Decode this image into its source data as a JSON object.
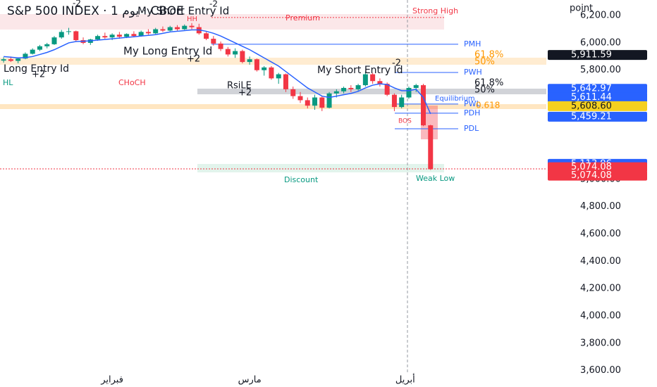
{
  "chart_data": {
    "type": "candlestick",
    "title": "S&P 500 INDEX · 1 يوم · CBOE",
    "y_axis_label": "point",
    "up_color": "#089981",
    "down_color": "#f23645",
    "grid": false,
    "xlim": [
      -0.5,
      75
    ],
    "xticks": [
      {
        "value": 15,
        "label": "فبراير"
      },
      {
        "value": 34,
        "label": "مارس"
      },
      {
        "value": 55.5,
        "label": "أبريل"
      }
    ],
    "ylim": [
      3505,
      6314
    ],
    "yticks": [
      {
        "value": 3600,
        "label": "3,600.00"
      },
      {
        "value": 3800,
        "label": "3,800.00"
      },
      {
        "value": 4000,
        "label": "4,000.00"
      },
      {
        "value": 4200,
        "label": "4,200.00"
      },
      {
        "value": 4400,
        "label": "4,400.00"
      },
      {
        "value": 4600,
        "label": "4,600.00"
      },
      {
        "value": 4800,
        "label": "4,800.00"
      },
      {
        "value": 5000,
        "label": "5,000.00"
      },
      {
        "value": 5800,
        "label": "5,800.00"
      },
      {
        "value": 6000,
        "label": "6,000.00"
      },
      {
        "value": 6200,
        "label": "6,200.00"
      }
    ],
    "x": [
      0,
      1,
      2,
      3,
      4,
      5,
      6,
      7,
      8,
      9,
      10,
      11,
      12,
      13,
      14,
      15,
      16,
      17,
      18,
      19,
      20,
      21,
      22,
      23,
      24,
      25,
      26,
      27,
      28,
      29,
      30,
      31,
      32,
      33,
      34,
      35,
      36,
      37,
      38,
      39,
      40,
      41,
      42,
      43,
      44,
      45,
      46,
      47,
      48,
      49,
      50,
      51,
      52,
      53,
      54,
      55,
      56,
      57,
      58,
      59
    ],
    "candles": [
      [
        5870,
        5895,
        5855,
        5880
      ],
      [
        5880,
        5900,
        5860,
        5868
      ],
      [
        5868,
        5890,
        5850,
        5885
      ],
      [
        5885,
        5930,
        5880,
        5920
      ],
      [
        5920,
        5960,
        5915,
        5950
      ],
      [
        5950,
        5985,
        5940,
        5975
      ],
      [
        5975,
        6000,
        5960,
        5990
      ],
      [
        5990,
        6050,
        5985,
        6040
      ],
      [
        6040,
        6095,
        6030,
        6080
      ],
      [
        6080,
        6110,
        6060,
        6085
      ],
      [
        6085,
        6090,
        6010,
        6020
      ],
      [
        6020,
        6040,
        5990,
        6000
      ],
      [
        6000,
        6030,
        5985,
        6025
      ],
      [
        6025,
        6060,
        6015,
        6050
      ],
      [
        6050,
        6075,
        6030,
        6040
      ],
      [
        6040,
        6070,
        6020,
        6060
      ],
      [
        6060,
        6080,
        6030,
        6045
      ],
      [
        6045,
        6070,
        6035,
        6065
      ],
      [
        6065,
        6085,
        6040,
        6050
      ],
      [
        6050,
        6090,
        6045,
        6080
      ],
      [
        6080,
        6100,
        6060,
        6070
      ],
      [
        6070,
        6110,
        6065,
        6100
      ],
      [
        6100,
        6120,
        6080,
        6090
      ],
      [
        6090,
        6125,
        6085,
        6115
      ],
      [
        6115,
        6130,
        6090,
        6100
      ],
      [
        6100,
        6135,
        6095,
        6125
      ],
      [
        6125,
        6145,
        6100,
        6115
      ],
      [
        6115,
        6140,
        6060,
        6070
      ],
      [
        6070,
        6080,
        6020,
        6030
      ],
      [
        6030,
        6050,
        5980,
        5995
      ],
      [
        5995,
        6010,
        5940,
        5955
      ],
      [
        5955,
        5970,
        5900,
        5915
      ],
      [
        5915,
        5960,
        5890,
        5940
      ],
      [
        5940,
        5950,
        5850,
        5860
      ],
      [
        5860,
        5900,
        5840,
        5880
      ],
      [
        5880,
        5885,
        5790,
        5800
      ],
      [
        5800,
        5830,
        5760,
        5820
      ],
      [
        5820,
        5830,
        5730,
        5740
      ],
      [
        5740,
        5780,
        5700,
        5770
      ],
      [
        5770,
        5775,
        5640,
        5660
      ],
      [
        5660,
        5680,
        5590,
        5610
      ],
      [
        5610,
        5640,
        5560,
        5580
      ],
      [
        5580,
        5600,
        5520,
        5540
      ],
      [
        5540,
        5620,
        5510,
        5600
      ],
      [
        5600,
        5610,
        5500,
        5525
      ],
      [
        5525,
        5640,
        5520,
        5630
      ],
      [
        5630,
        5660,
        5600,
        5645
      ],
      [
        5645,
        5680,
        5630,
        5670
      ],
      [
        5670,
        5690,
        5640,
        5660
      ],
      [
        5660,
        5700,
        5650,
        5690
      ],
      [
        5690,
        5790,
        5680,
        5770
      ],
      [
        5770,
        5780,
        5700,
        5720
      ],
      [
        5720,
        5740,
        5680,
        5700
      ],
      [
        5700,
        5710,
        5610,
        5620
      ],
      [
        5620,
        5630,
        5500,
        5530
      ],
      [
        5530,
        5620,
        5520,
        5600
      ],
      [
        5600,
        5680,
        5590,
        5670
      ],
      [
        5670,
        5700,
        5640,
        5690
      ],
      [
        5690,
        5700,
        5390,
        5396
      ],
      [
        5396,
        5400,
        5069,
        5074.08
      ]
    ],
    "series": [
      {
        "color": "#2962ff",
        "values": [
          5900,
          5895,
          5890,
          5892,
          5900,
          5915,
          5930,
          5950,
          5975,
          6000,
          6010,
          6012,
          6015,
          6020,
          6025,
          6030,
          6035,
          6040,
          6045,
          6050,
          6055,
          6060,
          6070,
          6080,
          6085,
          6090,
          6095,
          6095,
          6085,
          6070,
          6050,
          6025,
          6000,
          5975,
          5950,
          5920,
          5890,
          5860,
          5830,
          5790,
          5750,
          5710,
          5670,
          5640,
          5610,
          5600,
          5610,
          5620,
          5630,
          5645,
          5670,
          5690,
          5700,
          5695,
          5670,
          5650,
          5650,
          5660,
          5600,
          5480
        ]
      }
    ],
    "levels": [
      {
        "name": "PMH",
        "value": 5990,
        "color": "#2962ff"
      },
      {
        "name": "PWH",
        "value": 5783,
        "color": "#2962ff"
      },
      {
        "name": "PWL",
        "value": 5552,
        "color": "#2962ff"
      },
      {
        "name": "PDH",
        "value": 5485,
        "color": "#2962ff"
      },
      {
        "name": "PDL",
        "value": 5371,
        "color": "#2962ff"
      },
      {
        "name": "Strong High",
        "value": 6186,
        "color": "#f23645"
      },
      {
        "name": "Weak Low",
        "value": 5077,
        "color": "#f23645"
      }
    ],
    "price_tags": [
      {
        "value": 5911.59,
        "label": "5,911.59",
        "color": "#131722"
      },
      {
        "value": 5642.97,
        "label": "5,642.97",
        "color": "#2962ff"
      },
      {
        "value": 5611.44,
        "label": "5,611.44",
        "color": "#2962ff"
      },
      {
        "value": 5608.6,
        "label": "5,608.60",
        "color": "#f5d020"
      },
      {
        "value": 5459.21,
        "label": "5,459.21",
        "color": "#2962ff"
      },
      {
        "value": 5113.96,
        "label": "5,113.96",
        "color": "#2962ff"
      },
      {
        "value": 5074.08,
        "label": "5,074.08",
        "color": "#f23645"
      },
      {
        "value": 5074.08,
        "label": "5,074.08",
        "color": "#f23645"
      }
    ],
    "annotations": [
      "My Short Entry Id",
      "-2",
      "-2",
      "My Long Entry Id",
      "+2",
      "Long Entry Id",
      "+2",
      "RsiLE",
      "+2",
      "My Short Entry Id",
      "-2",
      "HL",
      "CHoCH",
      "HH",
      "Premium",
      "Discount",
      "BOS",
      "Equilibrium",
      "0.618",
      "61.8%",
      "50%",
      "61.8%",
      "50%"
    ]
  }
}
